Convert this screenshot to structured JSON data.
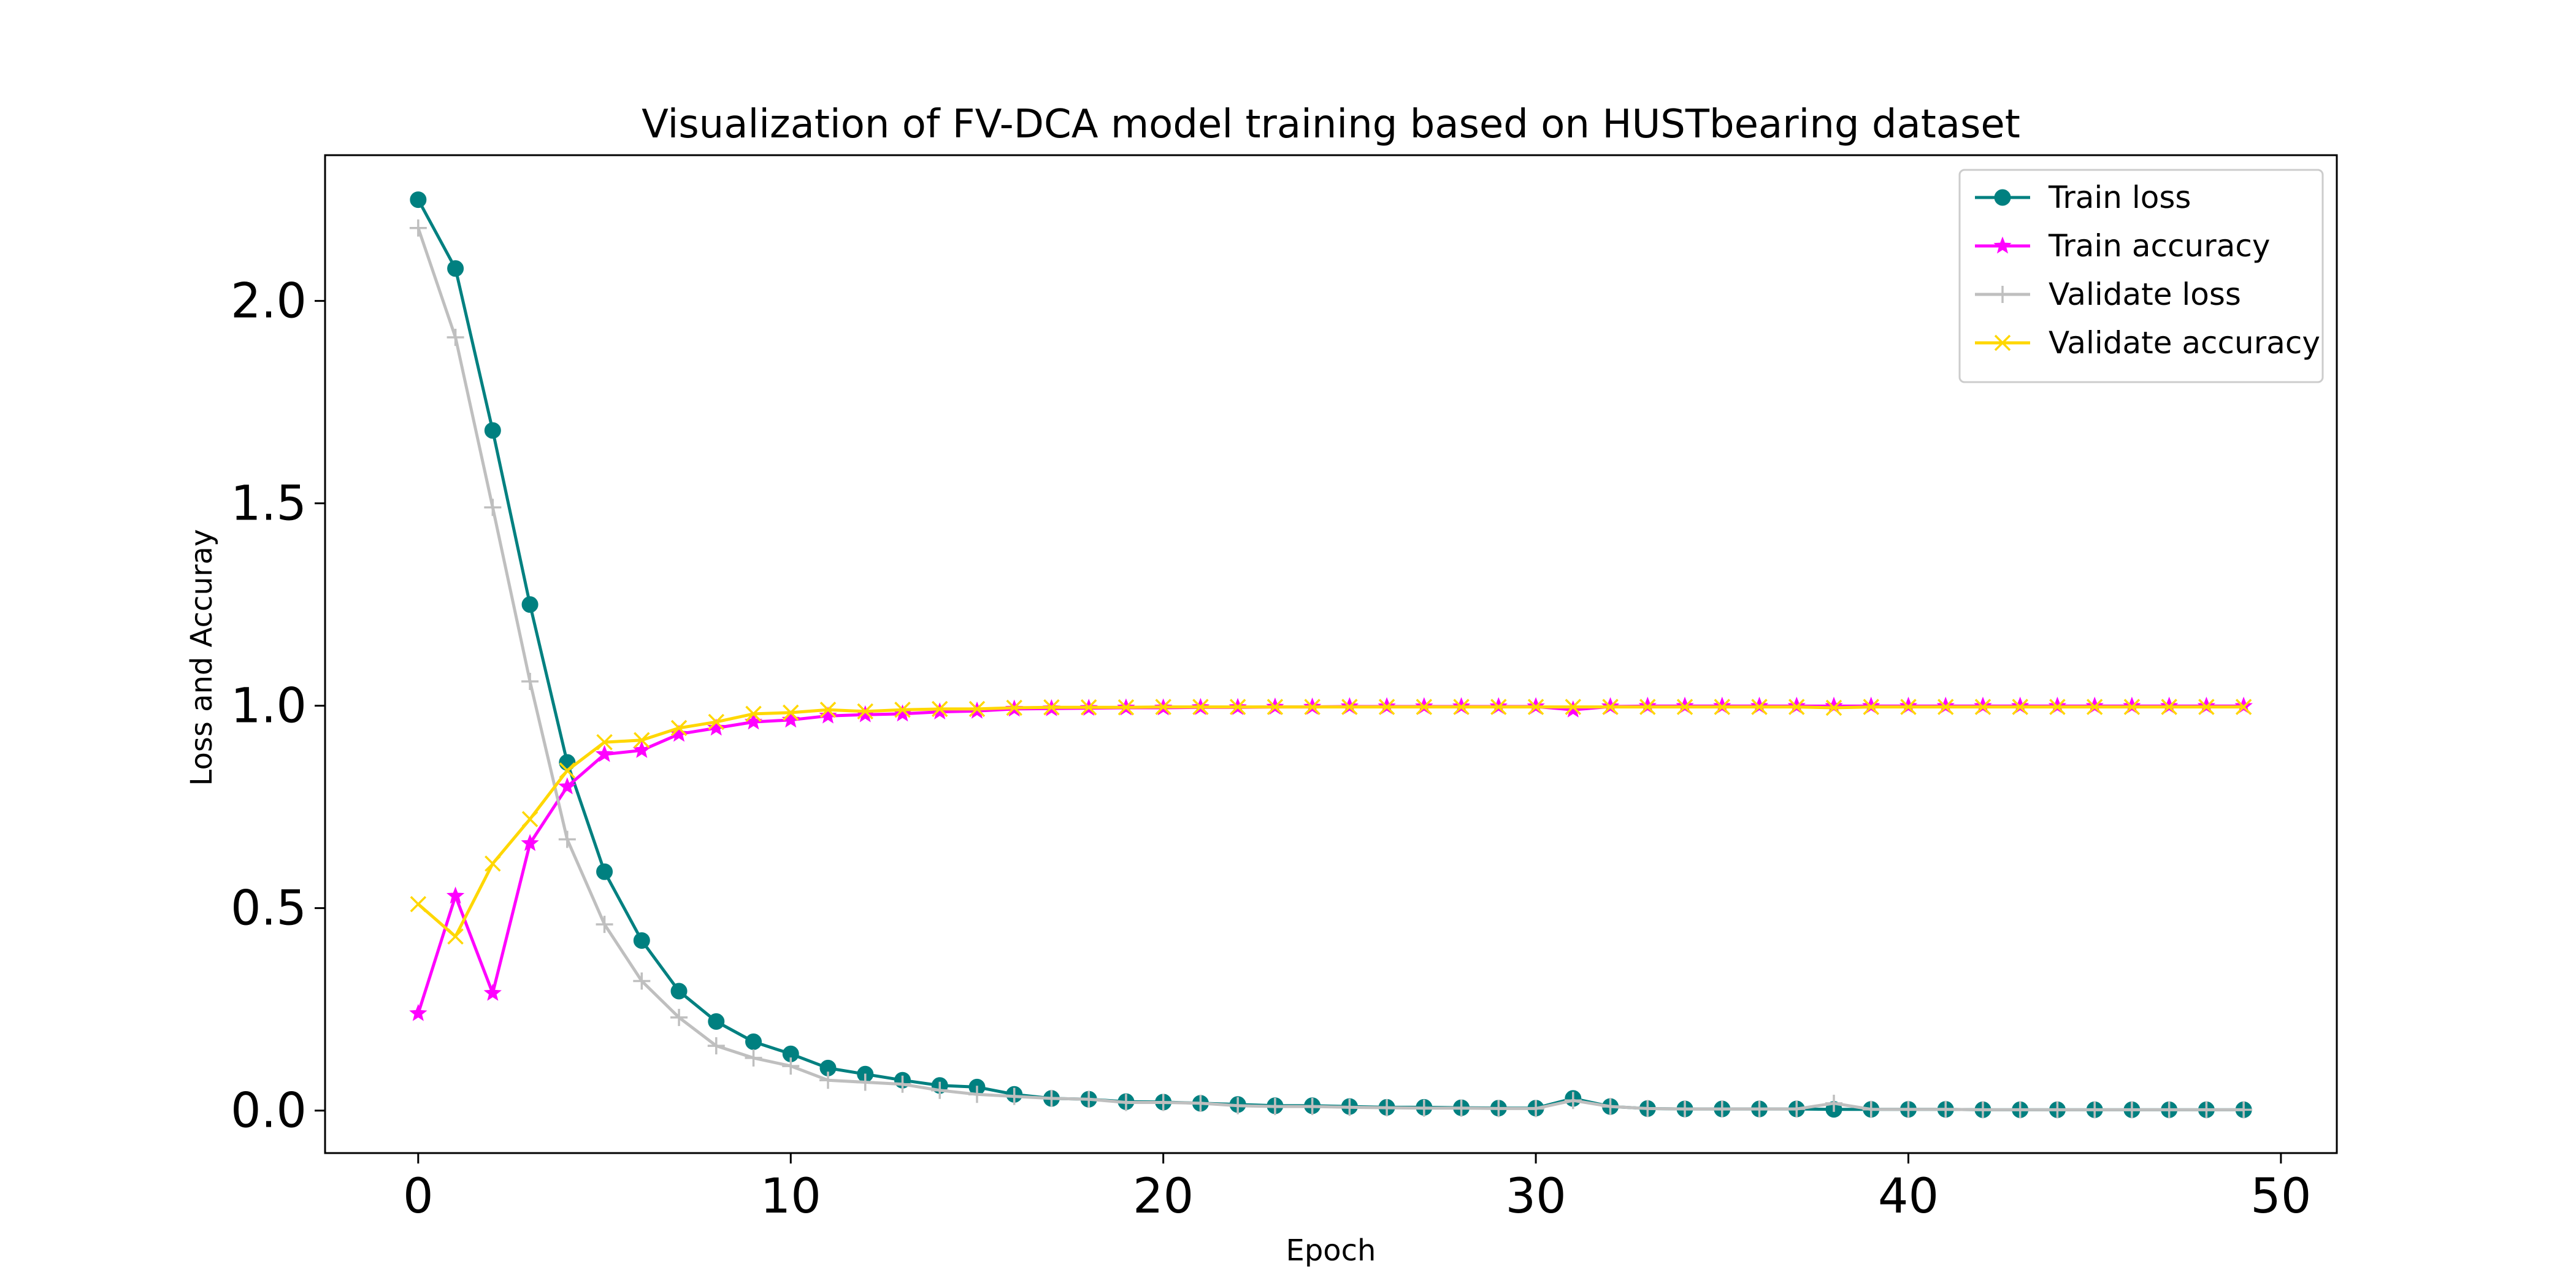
{
  "chart_data": {
    "type": "line",
    "title": "Visualization of FV-DCA model training based on HUSTbearing dataset",
    "xlabel": "Epoch",
    "ylabel": "Loss and Accuray",
    "xlim": [
      -2.5,
      51.5
    ],
    "ylim": [
      -0.105,
      2.36
    ],
    "xticks": [
      0,
      10,
      20,
      30,
      40,
      50
    ],
    "yticks": [
      0.0,
      0.5,
      1.0,
      1.5,
      2.0
    ],
    "xtick_labels": [
      "0",
      "10",
      "20",
      "30",
      "40",
      "50"
    ],
    "ytick_labels": [
      "0.0",
      "0.5",
      "1.0",
      "1.5",
      "2.0"
    ],
    "grid": false,
    "legend_position": "top-right",
    "x": [
      0,
      1,
      2,
      3,
      4,
      5,
      6,
      7,
      8,
      9,
      10,
      11,
      12,
      13,
      14,
      15,
      16,
      17,
      18,
      19,
      20,
      21,
      22,
      23,
      24,
      25,
      26,
      27,
      28,
      29,
      30,
      31,
      32,
      33,
      34,
      35,
      36,
      37,
      38,
      39,
      40,
      41,
      42,
      43,
      44,
      45,
      46,
      47,
      48,
      49
    ],
    "series": [
      {
        "name": "Train loss",
        "color": "#008080",
        "marker": "circle",
        "values": [
          2.25,
          2.08,
          1.68,
          1.25,
          0.86,
          0.59,
          0.42,
          0.295,
          0.22,
          0.17,
          0.14,
          0.105,
          0.09,
          0.075,
          0.062,
          0.058,
          0.04,
          0.03,
          0.028,
          0.022,
          0.021,
          0.018,
          0.015,
          0.012,
          0.012,
          0.01,
          0.008,
          0.008,
          0.007,
          0.006,
          0.006,
          0.03,
          0.01,
          0.005,
          0.004,
          0.004,
          0.004,
          0.004,
          0.003,
          0.003,
          0.003,
          0.003,
          0.002,
          0.002,
          0.002,
          0.002,
          0.002,
          0.002,
          0.002,
          0.002
        ]
      },
      {
        "name": "Train accuracy",
        "color": "#ff00ff",
        "marker": "star",
        "values": [
          0.24,
          0.53,
          0.29,
          0.66,
          0.8,
          0.88,
          0.89,
          0.93,
          0.945,
          0.96,
          0.965,
          0.975,
          0.978,
          0.98,
          0.985,
          0.987,
          0.992,
          0.993,
          0.994,
          0.995,
          0.995,
          0.996,
          0.996,
          0.997,
          0.997,
          0.998,
          0.998,
          0.998,
          0.998,
          0.998,
          0.998,
          0.99,
          0.998,
          0.999,
          0.999,
          0.999,
          0.999,
          0.999,
          0.999,
          0.999,
          0.999,
          0.999,
          0.999,
          0.999,
          0.999,
          0.999,
          0.999,
          0.999,
          0.999,
          0.999
        ]
      },
      {
        "name": "Validate loss",
        "color": "#bfbfbf",
        "marker": "plus",
        "values": [
          2.18,
          1.91,
          1.49,
          1.06,
          0.67,
          0.46,
          0.32,
          0.23,
          0.16,
          0.13,
          0.11,
          0.075,
          0.07,
          0.065,
          0.05,
          0.04,
          0.035,
          0.03,
          0.028,
          0.02,
          0.02,
          0.018,
          0.012,
          0.01,
          0.01,
          0.008,
          0.007,
          0.006,
          0.006,
          0.005,
          0.005,
          0.025,
          0.01,
          0.005,
          0.004,
          0.004,
          0.004,
          0.004,
          0.018,
          0.003,
          0.003,
          0.003,
          0.002,
          0.002,
          0.002,
          0.002,
          0.002,
          0.002,
          0.002,
          0.002
        ]
      },
      {
        "name": "Validate accuracy",
        "color": "#ffd700",
        "marker": "x",
        "values": [
          0.51,
          0.43,
          0.61,
          0.72,
          0.84,
          0.91,
          0.915,
          0.945,
          0.96,
          0.98,
          0.983,
          0.99,
          0.986,
          0.99,
          0.992,
          0.992,
          0.995,
          0.996,
          0.996,
          0.996,
          0.997,
          0.997,
          0.997,
          0.997,
          0.997,
          0.997,
          0.997,
          0.997,
          0.997,
          0.997,
          0.997,
          0.997,
          0.997,
          0.997,
          0.997,
          0.997,
          0.997,
          0.997,
          0.995,
          0.997,
          0.997,
          0.997,
          0.997,
          0.997,
          0.997,
          0.997,
          0.997,
          0.997,
          0.997,
          0.997
        ]
      }
    ]
  }
}
